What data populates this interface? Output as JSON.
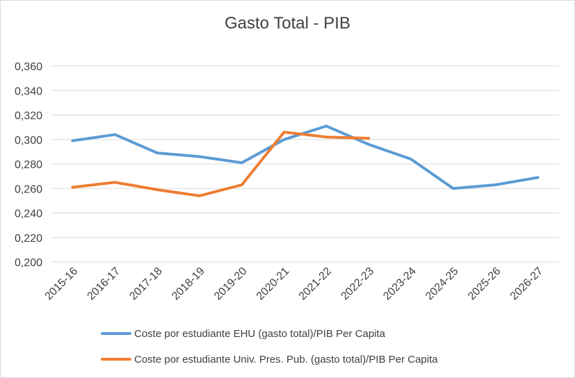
{
  "chart_data": {
    "type": "line",
    "title": "Gasto Total - PIB",
    "categories": [
      "2015-16",
      "2016-17",
      "2017-18",
      "2018-19",
      "2019-20",
      "2020-21",
      "2021-22",
      "2022-23",
      "2023-24",
      "2024-25",
      "2025-26",
      "2026-27"
    ],
    "y_ticks": [
      "0,200",
      "0,220",
      "0,240",
      "0,260",
      "0,280",
      "0,300",
      "0,320",
      "0,340",
      "0,360"
    ],
    "ylim": [
      0.2,
      0.36
    ],
    "grid": true,
    "legend_position": "bottom",
    "series": [
      {
        "name": "Coste por estudiante EHU (gasto total)/PIB Per Capita",
        "color": "#5b9bd5",
        "values": [
          0.299,
          0.304,
          0.289,
          0.286,
          0.281,
          0.3,
          0.311,
          0.296,
          0.284,
          0.26,
          0.263,
          0.269
        ]
      },
      {
        "name": "Coste por estudiante Univ. Pres. Pub. (gasto total)/PIB Per Capita",
        "color": "#ed7d31",
        "values": [
          0.261,
          0.265,
          0.259,
          0.254,
          0.263,
          0.306,
          0.302,
          0.301,
          null,
          null,
          null,
          null
        ]
      }
    ]
  }
}
